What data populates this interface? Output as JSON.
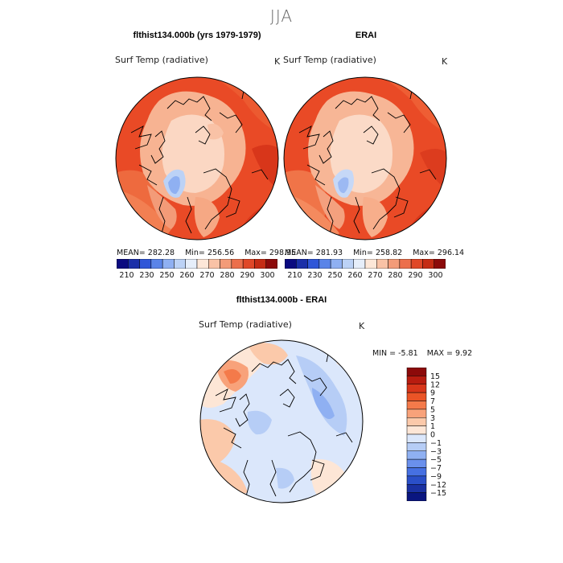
{
  "figure": {
    "season": "JJA"
  },
  "panels": [
    {
      "title": "flthist134.000b (yrs 1979-1979)",
      "field": "Surf Temp (radiative)",
      "units": "K",
      "mean_label": "MEAN=",
      "mean": "282.28",
      "min_label": "Min=",
      "min": "256.56",
      "max_label": "Max=",
      "max": "298.95"
    },
    {
      "title": "ERAI",
      "field": "Surf Temp (radiative)",
      "units": "K",
      "mean_label": "MEAN=",
      "mean": "281.93",
      "min_label": "Min=",
      "min": "258.82",
      "max_label": "Max=",
      "max": "296.14"
    }
  ],
  "abs_colorbar": {
    "ticks": [
      "210",
      "230",
      "250",
      "260",
      "270",
      "280",
      "290",
      "300"
    ],
    "colors": [
      "#0a0a80",
      "#1a2fa8",
      "#2f56d8",
      "#5a84e8",
      "#8fb0f2",
      "#bcd2f6",
      "#e6eefa",
      "#fde7d8",
      "#f9c2a6",
      "#f39b78",
      "#ec6f4c",
      "#e04828",
      "#c52c14",
      "#8c0a0a"
    ]
  },
  "difference": {
    "title": "flthist134.000b - ERAI",
    "field": "Surf Temp (radiative)",
    "units": "K",
    "min_label": "MIN =",
    "min": "-5.81",
    "max_label": "MAX =",
    "max": "9.92",
    "colorbar": {
      "labels": [
        "15",
        "12",
        "9",
        "7",
        "5",
        "3",
        "1",
        "0",
        "−1",
        "−3",
        "−5",
        "−7",
        "−9",
        "−12",
        "−15"
      ],
      "colors": [
        "#8c0a0a",
        "#b81c10",
        "#d8361a",
        "#ea5426",
        "#f47a4a",
        "#f8a27a",
        "#fbc9aa",
        "#fde6d6",
        "#dbe7fb",
        "#b6cdf6",
        "#8fb0f2",
        "#6a90ec",
        "#4670e2",
        "#2a4fc8",
        "#1a31a2",
        "#0a1680"
      ]
    }
  }
}
